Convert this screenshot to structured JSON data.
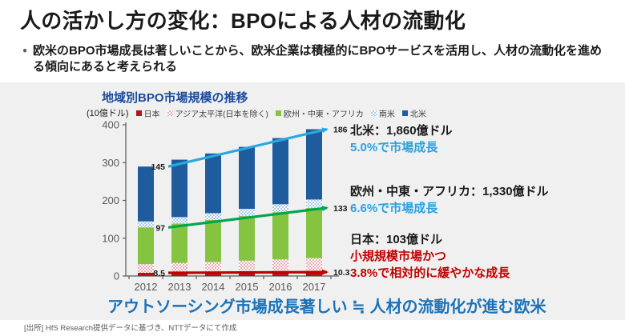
{
  "header": {
    "title": "人の活かし方の変化：BPOによる人材の流動化",
    "bullet": "欧米のBPO市場成長は著しいことから、欧米企業は積極的にBPOサービスを活用し、人材の流動化を進める傾向にあると考えられる"
  },
  "chart": {
    "title": "地域別BPO市場規模の推移",
    "unit_label": "(10億ドル)"
  },
  "chart_data": {
    "type": "bar",
    "stacked": true,
    "title": "地域別BPO市場規模の推移",
    "unit": "10億ドル",
    "categories": [
      "2012",
      "2013",
      "2014",
      "2015",
      "2016",
      "2017"
    ],
    "series": [
      {
        "name": "日本",
        "color": "#b5121b",
        "pattern": null,
        "values": [
          8.5,
          8.8,
          9.2,
          9.6,
          9.9,
          10.3
        ]
      },
      {
        "name": "アジア太平洋(日本を除く)",
        "color": "#eaacb3",
        "pattern": "pink",
        "values": [
          23,
          26,
          28,
          31,
          34,
          37
        ]
      },
      {
        "name": "欧州・中東・アフリカ",
        "color": "#85c440",
        "pattern": null,
        "values": [
          97,
          104,
          111,
          118,
          125,
          133
        ]
      },
      {
        "name": "南米",
        "color": "#a9cae9",
        "pattern": "blue",
        "values": [
          16,
          17,
          18,
          19,
          21,
          22
        ]
      },
      {
        "name": "北米",
        "color": "#1e5c9e",
        "pattern": null,
        "values": [
          145,
          152,
          158,
          164,
          175,
          186
        ]
      }
    ],
    "ylim": [
      0,
      400
    ],
    "yticks": [
      0,
      100,
      200,
      300,
      400
    ],
    "grid": false,
    "legend_position": "top",
    "trend_arrows": [
      {
        "name": "japan-trend",
        "color": "#c00000",
        "sum_series": 1,
        "start_label": "8.5",
        "end_label": "10.3"
      },
      {
        "name": "emea-trend",
        "color": "#00a551",
        "sum_series": 3,
        "start_label": "97",
        "end_label": "133"
      },
      {
        "name": "north-america-trend",
        "color": "#29a8e0",
        "sum_series": 5,
        "start_label": "145",
        "end_label": "186"
      }
    ]
  },
  "annotations": {
    "north_america": {
      "title": "北米：1,860億ドル",
      "growth": "5.0%で市場成長"
    },
    "emea": {
      "title": "欧州・中東・アフリカ：1,330億ドル",
      "growth": "6.6%で市場成長"
    },
    "japan": {
      "title": "日本：103億ドル",
      "line2": "小規規模市場かつ",
      "line3": "3.8%で相対的に緩やかな成長"
    }
  },
  "statement": "アウトソーシング市場成長著しい ≒ 人材の流動化が進む欧米",
  "footer": {
    "source": "[出所] HfS Research提供データに基づき、NTTデータにて作成"
  },
  "colors": {
    "panel_bg": "#f0f0f0",
    "chart_title_blue": "#1b4a9b",
    "accent_blue": "#29a2e0",
    "accent_red": "#c00000",
    "statement_blue": "#1b72b8"
  }
}
